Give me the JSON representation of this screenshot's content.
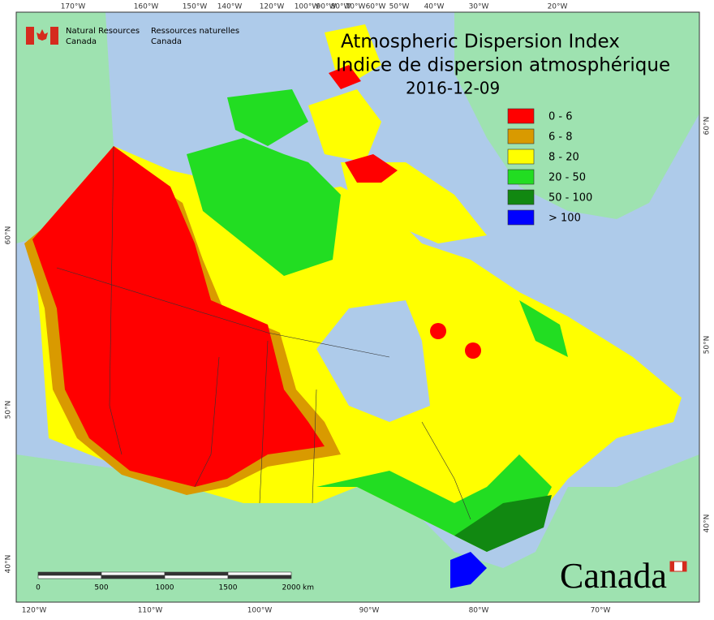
{
  "header": {
    "agency_en": [
      "Natural Resources",
      "Canada"
    ],
    "agency_fr": [
      "Ressources naturelles",
      "Canada"
    ]
  },
  "title": {
    "line1": "Atmospheric Dispersion Index",
    "line2": "Indice de dispersion atmosphérique",
    "date": "2016-12-09"
  },
  "legend": [
    {
      "label": "0 - 6",
      "color": "#ff0000"
    },
    {
      "label": "6 - 8",
      "color": "#d99a00"
    },
    {
      "label": "8 - 20",
      "color": "#ffff00"
    },
    {
      "label": "20 - 50",
      "color": "#22dd22"
    },
    {
      "label": "50 - 100",
      "color": "#118811"
    },
    {
      "label": "> 100",
      "color": "#0000ff"
    }
  ],
  "graticule": {
    "top": [
      "170°W",
      "160°W",
      "150°W",
      "140°W",
      "120°W",
      "100°W",
      "90°W",
      "80°W",
      "70°W",
      "60°W",
      "50°W",
      "40°W",
      "30°W",
      "20°W"
    ],
    "bottom": [
      "120°W",
      "110°W",
      "100°W",
      "90°W",
      "80°W",
      "70°W"
    ],
    "left": [
      "60°N",
      "50°N",
      "40°N"
    ],
    "right": [
      "60°N",
      "50°N",
      "40°N"
    ]
  },
  "scale_bar": {
    "labels": [
      "0",
      "500",
      "1000",
      "1500",
      "2000"
    ],
    "unit": "km"
  },
  "wordmark": "Canada"
}
